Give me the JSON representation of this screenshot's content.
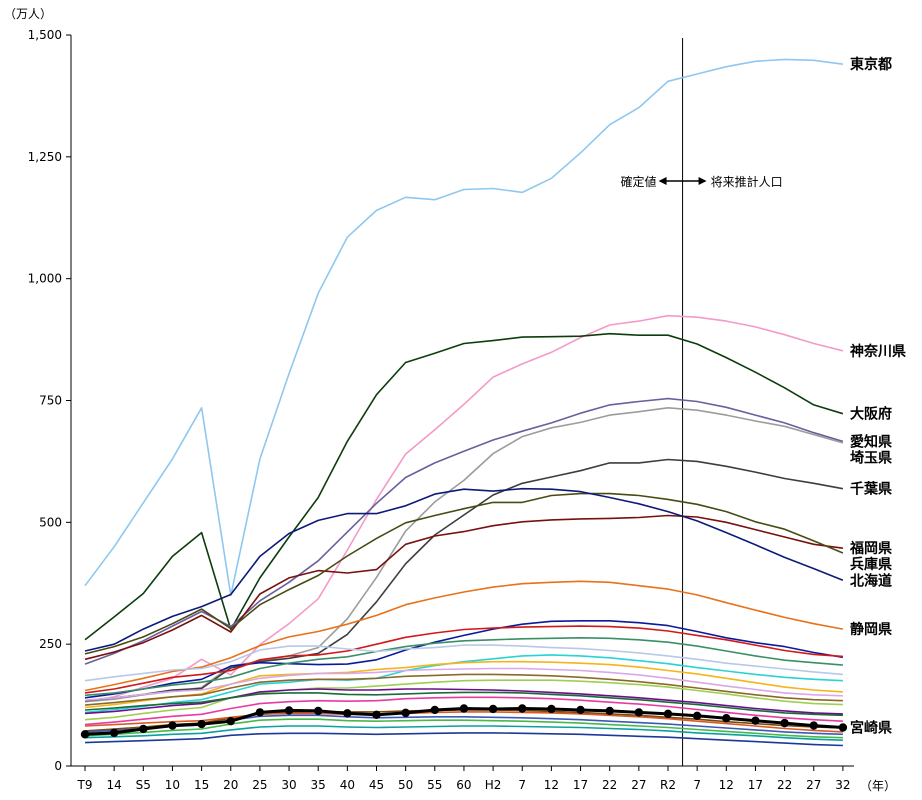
{
  "chart_data": {
    "type": "line",
    "ylabel": "（万人）",
    "xlabel": "（年）",
    "ylim": [
      0,
      1500
    ],
    "y_ticks": [
      "0",
      "250",
      "500",
      "750",
      "1,000",
      "1,250",
      "1,500"
    ],
    "categories": [
      "T9",
      "14",
      "S5",
      "10",
      "15",
      "20",
      "25",
      "30",
      "35",
      "40",
      "45",
      "50",
      "55",
      "60",
      "H2",
      "7",
      "12",
      "17",
      "22",
      "27",
      "R2",
      "7",
      "12",
      "17",
      "22",
      "27",
      "32"
    ],
    "divider_after": "R2",
    "annotation": {
      "left": "確定値",
      "right": "将来推計人口"
    },
    "grid": false,
    "series": [
      {
        "name": "東京都",
        "color": "#8ec8f0",
        "values": [
          370,
          450,
          540,
          630,
          735,
          350,
          630,
          805,
          970,
          1085,
          1140,
          1167,
          1162,
          1183,
          1185,
          1177,
          1206,
          1258,
          1316,
          1351,
          1405,
          1420,
          1435,
          1446,
          1450,
          1448,
          1440
        ]
      },
      {
        "name": "神奈川県",
        "color": "#f49ac9",
        "values": [
          132,
          142,
          162,
          180,
          219,
          187,
          249,
          292,
          343,
          443,
          547,
          640,
          690,
          742,
          798,
          825,
          849,
          879,
          905,
          913,
          924,
          921,
          913,
          901,
          885,
          867,
          852
        ]
      },
      {
        "name": "大阪府",
        "color": "#0d3d0d",
        "values": [
          259,
          306,
          354,
          430,
          479,
          280,
          386,
          470,
          551,
          666,
          762,
          828,
          847,
          867,
          873,
          880,
          881,
          882,
          887,
          884,
          884,
          866,
          838,
          808,
          776,
          741,
          723
        ]
      },
      {
        "name": "愛知県",
        "color": "#6a5f9e",
        "values": [
          209,
          231,
          257,
          287,
          317,
          286,
          339,
          377,
          421,
          480,
          539,
          592,
          622,
          646,
          669,
          687,
          704,
          724,
          741,
          748,
          754,
          748,
          736,
          720,
          704,
          684,
          666
        ]
      },
      {
        "name": "埼玉県",
        "color": "#9c9c9c",
        "values": [
          132,
          137,
          146,
          153,
          161,
          205,
          215,
          226,
          243,
          302,
          387,
          482,
          542,
          586,
          641,
          676,
          694,
          705,
          720,
          727,
          735,
          730,
          720,
          708,
          697,
          680,
          663
        ]
      },
      {
        "name": "千葉県",
        "color": "#3d3d3d",
        "values": [
          134,
          140,
          147,
          156,
          159,
          201,
          214,
          221,
          231,
          270,
          337,
          415,
          474,
          515,
          556,
          580,
          593,
          606,
          622,
          622,
          629,
          625,
          615,
          603,
          590,
          580,
          569
        ]
      },
      {
        "name": "福岡県",
        "color": "#7a0f0f",
        "values": [
          219,
          234,
          253,
          279,
          309,
          275,
          353,
          386,
          401,
          396,
          403,
          455,
          472,
          481,
          493,
          501,
          505,
          507,
          508,
          510,
          514,
          511,
          500,
          485,
          470,
          455,
          447
        ]
      },
      {
        "name": "兵庫県",
        "color": "#4a4a14",
        "values": [
          230,
          245,
          265,
          292,
          322,
          282,
          331,
          362,
          391,
          431,
          467,
          499,
          514,
          528,
          541,
          541,
          555,
          559,
          559,
          555,
          547,
          537,
          522,
          501,
          486,
          462,
          437
        ]
      },
      {
        "name": "北海道",
        "color": "#0d1a7a",
        "values": [
          236,
          250,
          281,
          307,
          327,
          352,
          430,
          477,
          504,
          518,
          518,
          534,
          558,
          568,
          564,
          569,
          568,
          563,
          551,
          538,
          522,
          503,
          479,
          454,
          428,
          405,
          381
        ]
      },
      {
        "name": "静岡県",
        "color": "#e8711a",
        "values": [
          155,
          167,
          180,
          194,
          203,
          222,
          247,
          265,
          276,
          291,
          309,
          331,
          345,
          357,
          367,
          374,
          377,
          379,
          377,
          370,
          363,
          351,
          335,
          320,
          305,
          292,
          281
        ]
      },
      {
        "name": "",
        "color": "#0b1a9a",
        "values": [
          140,
          148,
          158,
          170,
          178,
          205,
          212,
          210,
          208,
          209,
          218,
          238,
          254,
          268,
          281,
          291,
          297,
          298,
          298,
          294,
          288,
          276,
          263,
          253,
          245,
          233,
          223
        ]
      },
      {
        "name": "",
        "color": "#d11919",
        "values": [
          150,
          158,
          170,
          182,
          188,
          196,
          218,
          226,
          228,
          236,
          250,
          264,
          273,
          280,
          283,
          285,
          286,
          287,
          286,
          283,
          277,
          268,
          259,
          248,
          237,
          229,
          225
        ]
      },
      {
        "name": "",
        "color": "#3b8f66",
        "values": [
          145,
          150,
          158,
          166,
          172,
          182,
          200,
          211,
          219,
          224,
          235,
          245,
          252,
          257,
          259,
          261,
          262,
          263,
          262,
          259,
          254,
          246,
          236,
          226,
          217,
          212,
          207
        ]
      },
      {
        "name": "",
        "color": "#b8c8e8",
        "values": [
          175,
          183,
          190,
          197,
          200,
          214,
          238,
          246,
          246,
          240,
          235,
          240,
          243,
          248,
          248,
          246,
          243,
          241,
          237,
          232,
          226,
          219,
          211,
          205,
          199,
          193,
          188
        ]
      },
      {
        "name": "",
        "color": "#2ad3d3",
        "values": [
          110,
          116,
          122,
          130,
          136,
          152,
          168,
          172,
          178,
          176,
          180,
          196,
          206,
          214,
          220,
          226,
          228,
          226,
          222,
          216,
          210,
          202,
          195,
          188,
          182,
          178,
          175
        ]
      },
      {
        "name": "",
        "color": "#f5b41a",
        "values": [
          120,
          126,
          134,
          142,
          148,
          168,
          185,
          188,
          190,
          192,
          198,
          202,
          208,
          212,
          214,
          214,
          213,
          211,
          208,
          203,
          196,
          189,
          180,
          171,
          162,
          156,
          152
        ]
      },
      {
        "name": "",
        "color": "#9ecf52",
        "values": [
          95,
          100,
          108,
          115,
          120,
          140,
          150,
          156,
          160,
          160,
          164,
          168,
          172,
          175,
          176,
          176,
          176,
          174,
          171,
          167,
          162,
          155,
          148,
          140,
          133,
          128,
          126
        ]
      },
      {
        "name": "",
        "color": "#d8a8e8",
        "values": [
          135,
          140,
          147,
          153,
          156,
          168,
          180,
          186,
          190,
          190,
          192,
          196,
          198,
          199,
          200,
          200,
          198,
          196,
          192,
          187,
          180,
          172,
          164,
          157,
          150,
          146,
          144
        ]
      },
      {
        "name": "",
        "color": "#8a6a2a",
        "values": [
          125,
          130,
          136,
          142,
          146,
          160,
          172,
          176,
          178,
          178,
          180,
          184,
          186,
          188,
          188,
          187,
          185,
          182,
          178,
          173,
          167,
          160,
          153,
          146,
          140,
          136,
          134
        ]
      },
      {
        "name": "",
        "color": "#6a0f8a",
        "values": [
          108,
          112,
          118,
          124,
          128,
          140,
          152,
          156,
          158,
          156,
          156,
          158,
          158,
          157,
          156,
          154,
          151,
          148,
          144,
          140,
          135,
          130,
          124,
          118,
          113,
          109,
          107
        ]
      },
      {
        "name": "",
        "color": "#1a6a3a",
        "values": [
          115,
          119,
          124,
          128,
          131,
          140,
          148,
          150,
          150,
          147,
          146,
          148,
          150,
          151,
          151,
          150,
          147,
          144,
          140,
          136,
          131,
          126,
          120,
          114,
          109,
          106,
          104
        ]
      },
      {
        "name": "",
        "color": "#e83aa0",
        "values": [
          85,
          90,
          96,
          102,
          106,
          118,
          128,
          132,
          134,
          133,
          134,
          138,
          140,
          141,
          141,
          140,
          138,
          135,
          131,
          127,
          122,
          116,
          110,
          104,
          99,
          95,
          92
        ]
      },
      {
        "name": "",
        "color": "#7a4a0a",
        "values": [
          72,
          76,
          80,
          85,
          88,
          98,
          106,
          110,
          112,
          111,
          111,
          113,
          114,
          115,
          115,
          114,
          112,
          110,
          107,
          104,
          100,
          96,
          91,
          87,
          83,
          80,
          78
        ]
      },
      {
        "name": "",
        "color": "#3a5aba",
        "values": [
          70,
          73,
          77,
          81,
          84,
          94,
          102,
          104,
          104,
          101,
          99,
          100,
          101,
          101,
          100,
          99,
          97,
          95,
          92,
          89,
          86,
          82,
          78,
          74,
          70,
          67,
          65
        ]
      },
      {
        "name": "",
        "color": "#48b848",
        "values": [
          62,
          65,
          69,
          73,
          76,
          86,
          94,
          96,
          96,
          93,
          92,
          93,
          94,
          94,
          93,
          92,
          90,
          88,
          85,
          82,
          79,
          75,
          71,
          67,
          63,
          60,
          58
        ]
      },
      {
        "name": "",
        "color": "#d85a2a",
        "values": [
          82,
          85,
          88,
          91,
          93,
          100,
          106,
          108,
          108,
          106,
          106,
          108,
          110,
          111,
          111,
          110,
          109,
          107,
          104,
          101,
          97,
          92,
          87,
          82,
          77,
          73,
          70
        ]
      },
      {
        "name": "",
        "color": "#1a3a9a",
        "values": [
          48,
          50,
          52,
          54,
          56,
          63,
          66,
          67,
          67,
          66,
          65,
          66,
          67,
          68,
          68,
          67,
          66,
          65,
          63,
          61,
          59,
          56,
          53,
          50,
          47,
          44,
          42
        ]
      },
      {
        "name": "",
        "color": "#0aa0a0",
        "values": [
          58,
          60,
          62,
          65,
          67,
          74,
          80,
          82,
          82,
          80,
          79,
          80,
          81,
          82,
          82,
          81,
          80,
          79,
          77,
          75,
          72,
          68,
          65,
          62,
          58,
          55,
          53
        ]
      },
      {
        "name": "宮崎県",
        "color": "#000000",
        "markers": true,
        "values": [
          65,
          68,
          76,
          83,
          86,
          92,
          110,
          114,
          113,
          108,
          105,
          109,
          115,
          118,
          117,
          118,
          117,
          115,
          113,
          110,
          107,
          103,
          98,
          93,
          88,
          83,
          79
        ]
      }
    ]
  }
}
